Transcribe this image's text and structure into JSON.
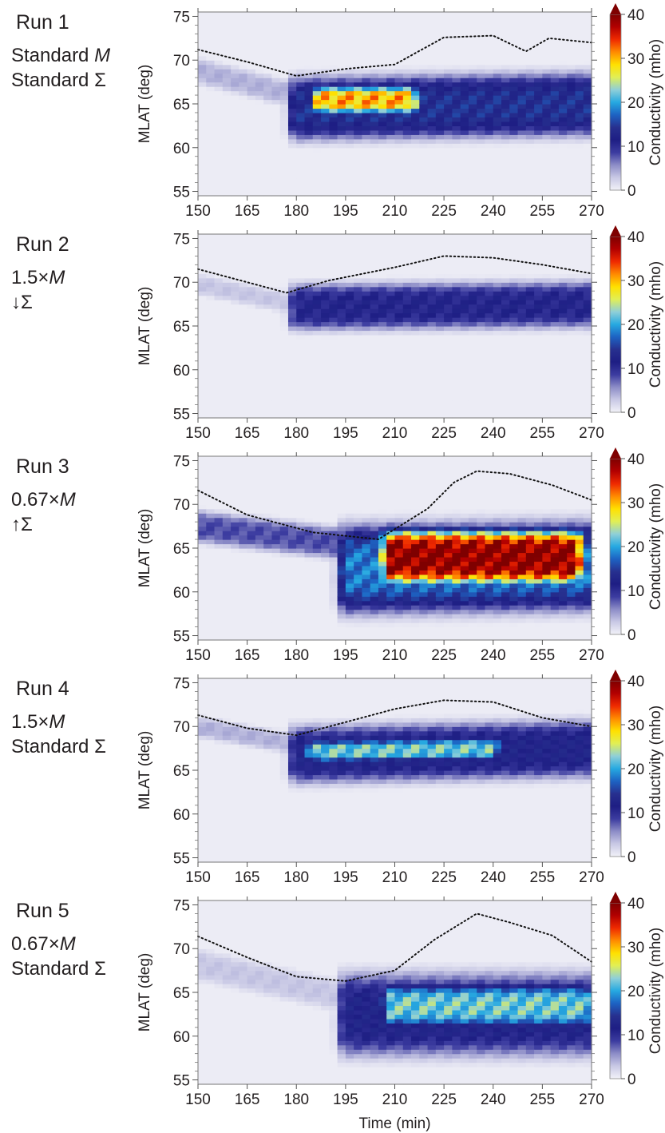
{
  "chart_data": {
    "type": "heatmap",
    "xlabel": "Time (min)",
    "ylabel": "MLAT (deg)",
    "colorbar_label": "Conductivity (mho)",
    "x_ticks": [
      "150",
      "165",
      "180",
      "195",
      "210",
      "225",
      "240",
      "255",
      "270"
    ],
    "y_ticks": [
      "75",
      "70",
      "65",
      "60",
      "55"
    ],
    "cb_ticks": [
      "40",
      "30",
      "20",
      "10",
      "0"
    ],
    "xlim": [
      150,
      270
    ],
    "ylim": [
      54.5,
      75.5
    ],
    "clim": [
      0,
      40
    ],
    "colormap": [
      "#f2f2f8",
      "#c9c9e5",
      "#8c8cc7",
      "#3c3ca0",
      "#1e1e84",
      "#27308f",
      "#1d63c3",
      "#26a9e1",
      "#8fcfd8",
      "#e1ef55",
      "#ffe000",
      "#ff8a00",
      "#ef2a00",
      "#b20000",
      "#7f0000"
    ],
    "contour_note": "dotted line",
    "panels": [
      {
        "run": "Run 1",
        "desc": [
          {
            "text": "Standard ",
            "italic": "M"
          },
          {
            "text": "Standard Σ"
          }
        ],
        "boundary": [
          [
            150,
            71.2
          ],
          [
            165,
            69.8
          ],
          [
            180,
            68.2
          ],
          [
            195,
            69
          ],
          [
            210,
            69.5
          ],
          [
            225,
            72.6
          ],
          [
            240,
            72.8
          ],
          [
            250,
            71
          ],
          [
            257,
            72.5
          ],
          [
            270,
            72
          ]
        ],
        "blobs": [
          {
            "t0": 150,
            "t1": 180,
            "lat0": 68.8,
            "lat1": 66,
            "w": 1.5,
            "v": 4
          },
          {
            "t0": 180,
            "t1": 270,
            "lat0": 64.5,
            "lat1": 65,
            "w": 3.5,
            "v": 14
          },
          {
            "t0": 187,
            "t1": 215,
            "lat0": 65.5,
            "lat1": 65.5,
            "w": 1.6,
            "v": 30
          },
          {
            "t0": 215,
            "t1": 270,
            "lat0": 63,
            "lat1": 63,
            "w": 1.5,
            "v": 9
          }
        ]
      },
      {
        "run": "Run 2",
        "desc": [
          {
            "text": "1.5×",
            "italic": "M"
          },
          {
            "text": "↓Σ"
          }
        ],
        "boundary": [
          [
            150,
            71.5
          ],
          [
            165,
            70
          ],
          [
            177,
            68.8
          ],
          [
            190,
            70.2
          ],
          [
            210,
            71.7
          ],
          [
            225,
            73
          ],
          [
            240,
            72.8
          ],
          [
            255,
            72
          ],
          [
            270,
            71
          ]
        ],
        "blobs": [
          {
            "t0": 150,
            "t1": 180,
            "lat0": 69.8,
            "lat1": 67.5,
            "w": 1.2,
            "v": 3
          },
          {
            "t0": 180,
            "t1": 270,
            "lat0": 67.2,
            "lat1": 67.5,
            "w": 2.6,
            "v": 11
          }
        ]
      },
      {
        "run": "Run 3",
        "desc": [
          {
            "text": "0.67×",
            "italic": "M"
          },
          {
            "text": "↑Σ"
          }
        ],
        "boundary": [
          [
            150,
            71.6
          ],
          [
            165,
            68.8
          ],
          [
            185,
            66.8
          ],
          [
            205,
            66
          ],
          [
            220,
            69.5
          ],
          [
            228,
            72.5
          ],
          [
            235,
            73.8
          ],
          [
            245,
            73.5
          ],
          [
            258,
            72.2
          ],
          [
            270,
            70.5
          ]
        ],
        "blobs": [
          {
            "t0": 150,
            "t1": 195,
            "lat0": 67.5,
            "lat1": 65.5,
            "w": 1.8,
            "v": 8
          },
          {
            "t0": 195,
            "t1": 270,
            "lat0": 62.6,
            "lat1": 63,
            "w": 4.8,
            "v": 18
          },
          {
            "t0": 208,
            "t1": 265,
            "lat0": 64,
            "lat1": 64,
            "w": 3.2,
            "v": 40
          }
        ]
      },
      {
        "run": "Run 4",
        "desc": [
          {
            "text": "1.5×",
            "italic": "M"
          },
          {
            "text": "Standard Σ"
          }
        ],
        "boundary": [
          [
            150,
            71.3
          ],
          [
            165,
            69.8
          ],
          [
            180,
            69
          ],
          [
            195,
            70.5
          ],
          [
            210,
            72
          ],
          [
            225,
            73
          ],
          [
            240,
            72.8
          ],
          [
            255,
            71
          ],
          [
            270,
            70
          ]
        ],
        "blobs": [
          {
            "t0": 150,
            "t1": 180,
            "lat0": 70,
            "lat1": 68,
            "w": 1.2,
            "v": 4
          },
          {
            "t0": 180,
            "t1": 270,
            "lat0": 66.8,
            "lat1": 67.5,
            "w": 3.2,
            "v": 12
          },
          {
            "t0": 185,
            "t1": 240,
            "lat0": 67.2,
            "lat1": 67.5,
            "w": 1.3,
            "v": 22
          }
        ]
      },
      {
        "run": "Run 5",
        "desc": [
          {
            "text": "0.67×",
            "italic": "M"
          },
          {
            "text": "Standard Σ"
          }
        ],
        "boundary": [
          [
            150,
            71.4
          ],
          [
            165,
            69
          ],
          [
            180,
            66.8
          ],
          [
            195,
            66.3
          ],
          [
            210,
            67.5
          ],
          [
            222,
            71
          ],
          [
            235,
            74
          ],
          [
            245,
            73
          ],
          [
            258,
            71.5
          ],
          [
            270,
            68.5
          ]
        ],
        "blobs": [
          {
            "t0": 150,
            "t1": 195,
            "lat0": 68.2,
            "lat1": 64.5,
            "w": 1.8,
            "v": 3
          },
          {
            "t0": 195,
            "t1": 270,
            "lat0": 62.5,
            "lat1": 62.5,
            "w": 4.6,
            "v": 12
          },
          {
            "t0": 208,
            "t1": 268,
            "lat0": 63.5,
            "lat1": 63.5,
            "w": 2.5,
            "v": 22
          }
        ]
      }
    ]
  }
}
